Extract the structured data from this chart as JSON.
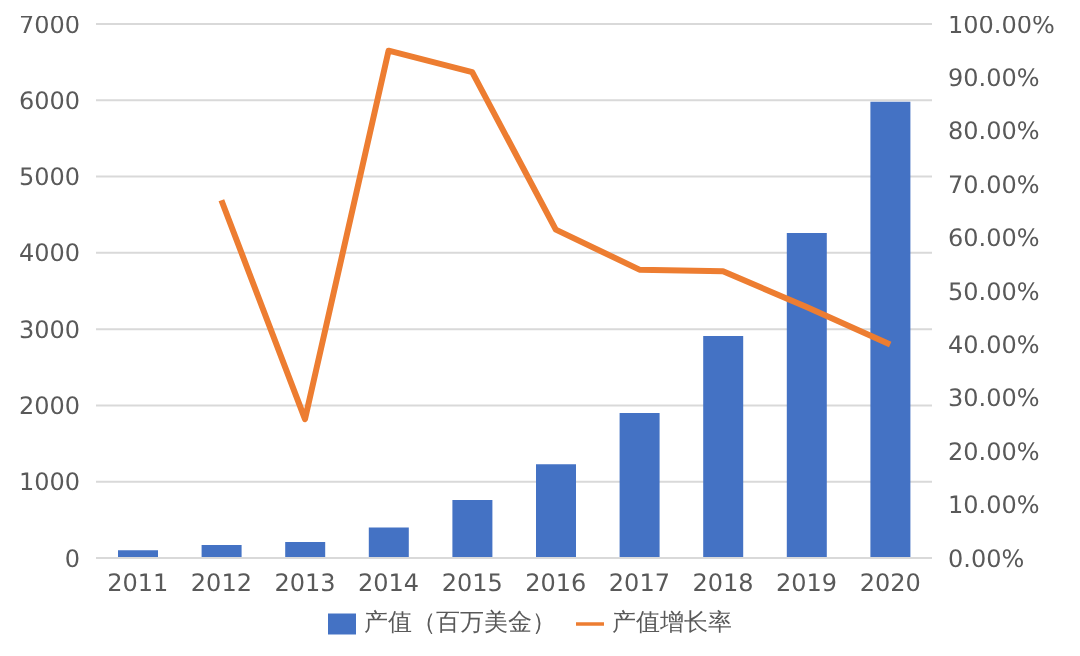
{
  "chart_data": {
    "type": "bar",
    "categories": [
      "2011",
      "2012",
      "2013",
      "2014",
      "2015",
      "2016",
      "2017",
      "2018",
      "2019",
      "2020"
    ],
    "series": [
      {
        "name": "产值（百万美金）",
        "color": "#4472c4",
        "values": [
          100,
          170,
          210,
          400,
          760,
          1230,
          1900,
          2910,
          4260,
          5980
        ]
      },
      {
        "name": "产值增长率",
        "type": "line",
        "axis": "y2",
        "color": "#ed7d31",
        "values": [
          null,
          67,
          26,
          95,
          91,
          61.5,
          54,
          53.7,
          47,
          40
        ]
      }
    ],
    "ylim": [
      0,
      7000
    ],
    "yticks": [
      0,
      1000,
      2000,
      3000,
      4000,
      5000,
      6000,
      7000
    ],
    "y2lim": [
      0,
      100
    ],
    "y2ticks": [
      {
        "value": 0,
        "label": "0.00%"
      },
      {
        "value": 10,
        "label": "10.00%"
      },
      {
        "value": 20,
        "label": "20.00%"
      },
      {
        "value": 30,
        "label": "30.00%"
      },
      {
        "value": 40,
        "label": "40.00%"
      },
      {
        "value": 50,
        "label": "50.00%"
      },
      {
        "value": 60,
        "label": "60.00%"
      },
      {
        "value": 70,
        "label": "70.00%"
      },
      {
        "value": 80,
        "label": "80.00%"
      },
      {
        "value": 90,
        "label": "90.00%"
      },
      {
        "value": 100,
        "label": "100.00%"
      }
    ],
    "grid": "y",
    "legend": "bottom",
    "marker": "none",
    "line_style": "solid"
  }
}
